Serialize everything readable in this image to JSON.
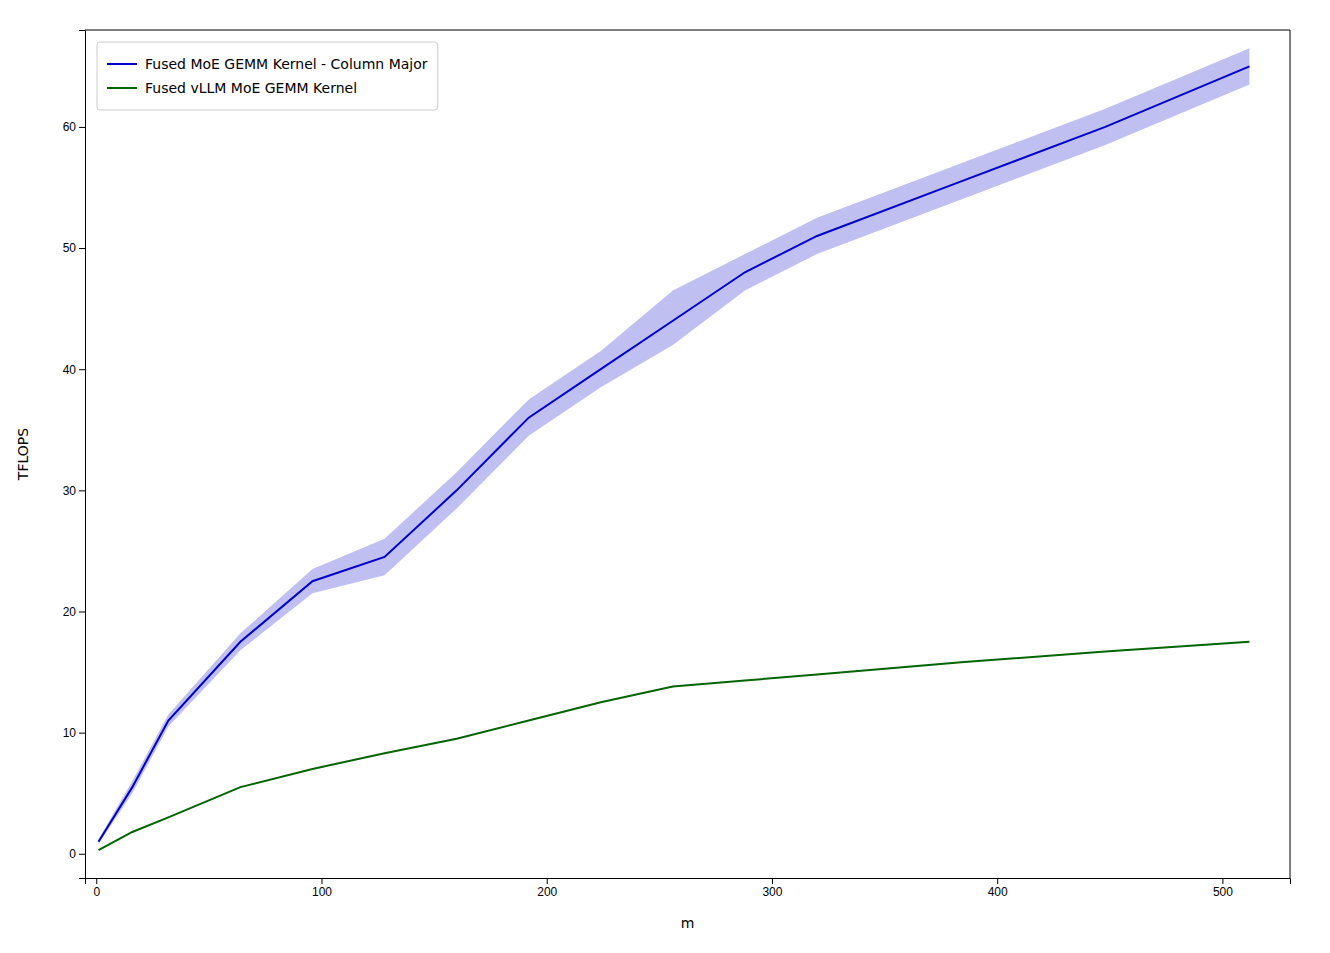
{
  "chart_data": {
    "type": "line",
    "xlabel": "m",
    "ylabel": "TFLOPS",
    "x": [
      1,
      16,
      32,
      64,
      96,
      128,
      160,
      192,
      224,
      256,
      288,
      320,
      384,
      448,
      512
    ],
    "series": [
      {
        "name": "Fused MoE GEMM Kernel - Column Major",
        "color": "#0000cc",
        "values": [
          1.0,
          5.5,
          11.0,
          17.5,
          22.5,
          24.5,
          30.0,
          36.0,
          40.0,
          44.0,
          48.0,
          51.0,
          55.5,
          60.0,
          65.0
        ],
        "lower": [
          0.8,
          5.0,
          10.5,
          16.8,
          21.5,
          23.0,
          28.5,
          34.5,
          38.5,
          42.0,
          46.5,
          49.5,
          54.0,
          58.5,
          63.5
        ],
        "upper": [
          1.2,
          6.0,
          11.5,
          18.2,
          23.5,
          26.0,
          31.5,
          37.5,
          41.5,
          46.5,
          49.5,
          52.5,
          57.0,
          61.5,
          66.5
        ]
      },
      {
        "name": "Fused vLLM MoE GEMM Kernel",
        "color": "#006400",
        "values": [
          0.3,
          1.8,
          3.0,
          5.5,
          7.0,
          8.3,
          9.5,
          11.0,
          12.5,
          13.8,
          14.3,
          14.8,
          15.8,
          16.7,
          17.5
        ]
      }
    ],
    "xlim": [
      -5,
      530
    ],
    "ylim": [
      -2,
      68
    ],
    "xticks": [
      0,
      100,
      200,
      300,
      400,
      500
    ],
    "yticks": [
      0,
      10,
      20,
      30,
      40,
      50,
      60
    ],
    "grid": false,
    "legend": "upper left"
  }
}
